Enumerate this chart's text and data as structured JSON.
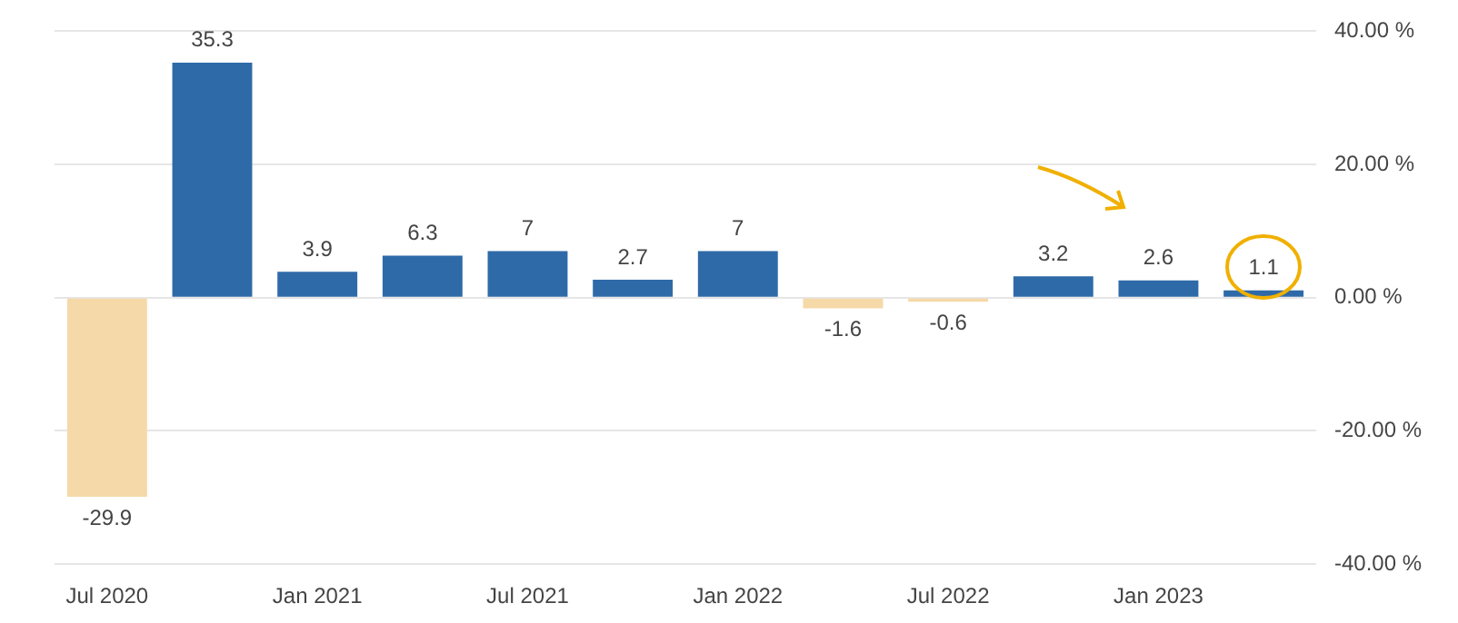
{
  "chart_data": {
    "type": "bar",
    "categories": [
      "Jul 2020",
      null,
      "Jan 2021",
      null,
      "Jul 2021",
      null,
      "Jan 2022",
      null,
      "Jul 2022",
      null,
      "Jan 2023",
      null
    ],
    "values": [
      -29.9,
      35.3,
      3.9,
      6.3,
      7,
      2.7,
      7,
      -1.6,
      -0.6,
      3.2,
      2.6,
      1.1
    ],
    "colors": [
      "#f5d9a8",
      "#2f6aa8",
      "#2f6aa8",
      "#2f6aa8",
      "#2f6aa8",
      "#2f6aa8",
      "#2f6aa8",
      "#f5d9a8",
      "#f5d9a8",
      "#2f6aa8",
      "#2f6aa8",
      "#2f6aa8"
    ],
    "ylim": [
      -40,
      40
    ],
    "yticks": [
      {
        "value": -40,
        "label": "-40.00 %"
      },
      {
        "value": -20,
        "label": "-20.00 %"
      },
      {
        "value": 0,
        "label": "0.00 %"
      },
      {
        "value": 20,
        "label": "20.00 %"
      },
      {
        "value": 40,
        "label": "40.00 %"
      }
    ],
    "grid": "y",
    "data_labels": true,
    "legend": false
  }
}
